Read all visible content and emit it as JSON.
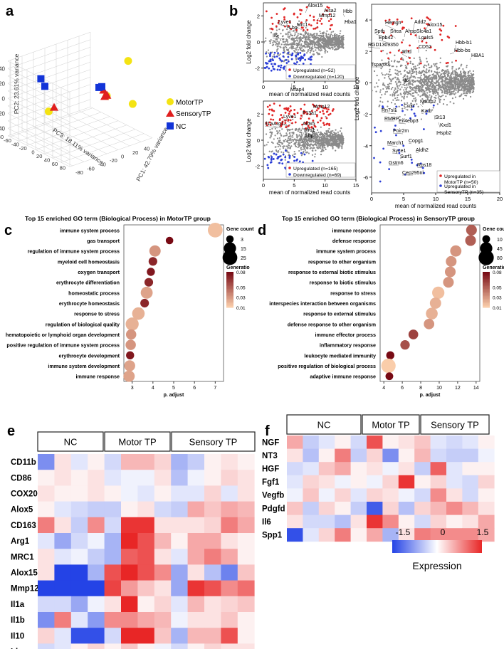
{
  "panel_letters": [
    "a",
    "b",
    "c",
    "d",
    "e",
    "f"
  ],
  "chart_data": [
    {
      "id": "a",
      "type": "scatter",
      "title": "",
      "xlabel": "PC1: 42.79% variance",
      "ylabel": "PC2: 23.61% variance",
      "zlabel": "PC3: 18.11% variance",
      "y_ticks": [
        "-40",
        "-20",
        "0",
        "20",
        "40"
      ],
      "x_ticks": [
        "-80",
        "-60",
        "-40",
        "-20",
        "0",
        "20",
        "40"
      ],
      "z_ticks": [
        "80",
        "60",
        "40",
        "20",
        "0",
        "-20",
        "-40",
        "-60",
        "-80"
      ],
      "legend": [
        {
          "name": "MotorTP",
          "color": "#f4e313"
        },
        {
          "name": "SensoryTP",
          "color": "#e01f1f"
        },
        {
          "name": "NC",
          "color": "#1234d8"
        }
      ],
      "series": [
        {
          "name": "MotorTP",
          "points": [
            [
              55,
              -40,
              10
            ],
            [
              10,
              -8,
              20
            ],
            [
              -62,
              5,
              -20
            ],
            [
              48,
              10,
              30
            ]
          ]
        },
        {
          "name": "SensoryTP",
          "points": [
            [
              -60,
              -3,
              -10
            ],
            [
              10,
              -6,
              15
            ],
            [
              8,
              -15,
              15
            ],
            [
              18,
              -4,
              10
            ]
          ]
        },
        {
          "name": "NC",
          "points": [
            [
              -72,
              -40,
              -25
            ],
            [
              -65,
              -28,
              -25
            ],
            [
              -10,
              -30,
              35
            ],
            [
              -30,
              -40,
              55
            ]
          ]
        }
      ]
    },
    {
      "id": "b1",
      "type": "scatter",
      "xlabel": "mean of normalized read counts",
      "ylabel": "Log2 fold change",
      "xlim": [
        0,
        15
      ],
      "ylim": [
        -3,
        3
      ],
      "x_ticks": [
        "0",
        "5",
        "10",
        "15"
      ],
      "y_ticks": [
        "-2",
        "0",
        "2"
      ],
      "gene_labels": [
        "Alox15",
        "Aisa2",
        "Mmp12",
        "Hbb",
        "Hba1",
        "Lyve1",
        "Lbp",
        "Mrc1",
        "Il6",
        "Mfap4"
      ],
      "legend": [
        "Upregulated (n=52)",
        "Downregulated (n=120)"
      ]
    },
    {
      "id": "b2",
      "type": "scatter",
      "xlabel": "mean of normalized read counts",
      "ylabel": "Log2 fold change",
      "xlim": [
        0,
        15
      ],
      "ylim": [
        -3,
        3
      ],
      "x_ticks": [
        "0",
        "5",
        "10",
        "15"
      ],
      "y_ticks": [
        "-2",
        "0",
        "2"
      ],
      "gene_labels": [
        "Mmp12",
        "F13a1",
        "Lyve1",
        "Il1a",
        "Arg1",
        "Alox5",
        "Mrc1",
        "Lbp"
      ],
      "legend": [
        "Upregulated (n=165)",
        "Downregulated (n=69)"
      ]
    },
    {
      "id": "b3",
      "type": "scatter",
      "xlabel": "mean of normalized read counts",
      "ylabel": "Log2 fold change",
      "xlim": [
        0,
        20
      ],
      "ylim": [
        -7,
        5
      ],
      "x_ticks": [
        "0",
        "5",
        "10",
        "15",
        "20"
      ],
      "y_ticks": [
        "-6",
        "-4",
        "-2",
        "0",
        "2",
        "4"
      ],
      "gene_labels": [
        "Hemgn",
        "Add2",
        "Alox15",
        "Sptb",
        "Snca",
        "Ahsp",
        "Slc4a1",
        "Epb42",
        "Lgals5",
        "RGD1309350",
        "CD52",
        "Rhd",
        "Hbb-b1",
        "Hbb-bs",
        "HBA1",
        "Tspan33",
        "Il6",
        "Ndufb2",
        "Crcp",
        "Rn7sl1",
        "Katb",
        "St13",
        "RMRP",
        "Eif4ebp3",
        "Kxd1",
        "Poir2m",
        "Hspb2",
        "Copg1",
        "Aldh2",
        "March1",
        "Surf1",
        "Syce1",
        "Gstm6",
        "Rps18",
        "Cep295nl"
      ],
      "legend": [
        "Upregulated in MotorTP (n=50)",
        "Upregulated in SensoryTP (n=35)"
      ]
    },
    {
      "id": "c",
      "type": "scatter",
      "title": "Top 15 enriched GO term (Biological Process) in MotorTP group",
      "xlabel": "p. adjust",
      "x_ticks": [
        "3",
        "4",
        "5",
        "6",
        "7"
      ],
      "xlim": [
        2.6,
        7.4
      ],
      "size_legend_title": "Gene count",
      "size_legend": [
        "3",
        "15",
        "25"
      ],
      "color_legend_title": "Generatio",
      "color_legend": [
        "0.08",
        "0.05",
        "0.03",
        "0.01"
      ],
      "terms": [
        "immune system process",
        "gas transport",
        "regulation of immune system process",
        "myeloid cell homeostasis",
        "oxygen transport",
        "erythrocyte differentiation",
        "homeostatic process",
        "erythrocyte homeostasis",
        "response to stress",
        "regulation of biological quality",
        "hematopoietic or lymphoid organ development",
        "positive regulation of immune system process",
        "erythrocyte development",
        "immune system development",
        "immune response"
      ],
      "values": [
        7.0,
        4.8,
        4.1,
        4.0,
        3.9,
        3.8,
        3.7,
        3.6,
        3.3,
        3.0,
        2.95,
        2.93,
        2.9,
        2.88,
        2.85
      ],
      "gene_count": [
        25,
        3,
        12,
        5,
        4,
        5,
        14,
        5,
        16,
        18,
        9,
        9,
        4,
        11,
        12
      ],
      "gene_ratio": [
        0.015,
        0.08,
        0.03,
        0.07,
        0.075,
        0.07,
        0.025,
        0.07,
        0.02,
        0.02,
        0.03,
        0.03,
        0.075,
        0.025,
        0.025
      ]
    },
    {
      "id": "d",
      "type": "scatter",
      "title": "Top 15 enriched GO term (Biological Process) in SensoryTP group",
      "xlabel": "p. adjust",
      "x_ticks": [
        "4",
        "6",
        "8",
        "10",
        "12",
        "14"
      ],
      "xlim": [
        3.6,
        14.4
      ],
      "size_legend_title": "Gene count",
      "size_legend": [
        "10",
        "45",
        "80"
      ],
      "color_legend_title": "Generatio",
      "color_legend": [
        "0.08",
        "0.05",
        "0.03",
        "0.01"
      ],
      "terms": [
        "immune response",
        "defense response",
        "immune system process",
        "response to other organism",
        "response to external biotic stimulus",
        "response to biotic stimulus",
        "response to stress",
        "interspecies interaction between organisms",
        "response to external stimulus",
        "defense response to other organism",
        "immune effector process",
        "inflammatory response",
        "leukocyte mediated immunity",
        "positive regulation of biological process",
        "adaptive immune response"
      ],
      "values": [
        13.5,
        13.4,
        11.8,
        11.3,
        11.2,
        11.0,
        9.9,
        9.6,
        9.2,
        8.9,
        7.2,
        6.3,
        4.7,
        4.5,
        4.6
      ],
      "gene_count": [
        30,
        30,
        35,
        30,
        30,
        30,
        45,
        35,
        40,
        28,
        22,
        20,
        12,
        70,
        10
      ],
      "gene_ratio": [
        0.05,
        0.05,
        0.03,
        0.03,
        0.03,
        0.03,
        0.015,
        0.02,
        0.02,
        0.03,
        0.06,
        0.055,
        0.08,
        0.01,
        0.08
      ]
    },
    {
      "id": "e",
      "type": "heatmap",
      "groups": [
        "NC",
        "Motor TP",
        "Sensory TP"
      ],
      "rows": [
        "CD11b",
        "CD86",
        "COX20",
        "Alox5",
        "CD163",
        "Arg1",
        "MRC1",
        "Alox15",
        "Mmp12",
        "Il1a",
        "Il1b",
        "Il10",
        "Lbp"
      ],
      "values": [
        [
          -0.9,
          0.2,
          -0.2,
          0.1,
          -0.3,
          0.5,
          0.5,
          0.3,
          -0.6,
          -0.4,
          0.1,
          0.2,
          0.1
        ],
        [
          0.1,
          0.2,
          0.1,
          0.2,
          -0.2,
          -0.1,
          -0.1,
          0.2,
          -0.5,
          -0.1,
          0.1,
          0.3,
          0.2
        ],
        [
          0.2,
          0.1,
          0.1,
          0.2,
          0.1,
          -0.1,
          -0.2,
          0.1,
          -0.2,
          -0.2,
          0.3,
          -0.2,
          0.2
        ],
        [
          0.1,
          -0.2,
          -0.3,
          -0.4,
          -0.4,
          0.1,
          0.2,
          -0.3,
          -0.4,
          0.6,
          0.4,
          0.6,
          0.5
        ],
        [
          0.9,
          0.2,
          -0.4,
          0.8,
          -0.3,
          1.4,
          1.4,
          0.2,
          0.2,
          0.2,
          0.3,
          0.9,
          0.6
        ],
        [
          -0.2,
          -0.7,
          -0.3,
          -0.1,
          -0.6,
          1.5,
          1.2,
          0.5,
          0.1,
          0.6,
          0.6,
          0.2,
          0.1
        ],
        [
          0.2,
          -0.2,
          -0.1,
          -0.4,
          -0.6,
          1.1,
          1.2,
          0.2,
          -0.2,
          0.6,
          0.9,
          0.6,
          0.1
        ],
        [
          0.2,
          -1.5,
          -1.5,
          -0.6,
          1.2,
          1.5,
          1.2,
          0.8,
          -0.7,
          0.2,
          -0.5,
          -1.0,
          0.4
        ],
        [
          -1.5,
          -1.5,
          -1.5,
          -1.5,
          1.3,
          0.7,
          0.4,
          0.2,
          -0.7,
          1.4,
          1.2,
          0.8,
          1.0
        ],
        [
          -0.3,
          -0.3,
          -0.7,
          -0.1,
          0.2,
          1.5,
          0.1,
          0.3,
          -0.2,
          0.5,
          0.2,
          0.3,
          0.4
        ],
        [
          -0.9,
          0.9,
          -0.2,
          -0.8,
          0.8,
          0.8,
          0.6,
          0.5,
          -0.1,
          0.2,
          0.2,
          0.4,
          0.1
        ],
        [
          0.3,
          -0.2,
          -1.4,
          -1.4,
          -0.3,
          1.5,
          1.5,
          0.4,
          -0.6,
          0.5,
          0.5,
          1.2,
          0.1
        ],
        [
          -0.3,
          -0.2,
          0.1,
          0.3,
          0.1,
          0.4,
          0.1,
          -0.1,
          -0.3,
          0.1,
          0.3,
          0.2,
          0.2
        ]
      ]
    },
    {
      "id": "f",
      "type": "heatmap",
      "groups": [
        "NC",
        "Motor TP",
        "Sensory TP"
      ],
      "rows": [
        "NGF",
        "NT3",
        "HGF",
        "Fgf1",
        "Vegfb",
        "Pdgfd",
        "Il6",
        "Spp1"
      ],
      "values": [
        [
          0.6,
          -0.4,
          -0.2,
          0.1,
          -0.3,
          1.2,
          0.1,
          0.2,
          0.4,
          -0.2,
          -0.3,
          -0.2,
          0.1
        ],
        [
          0.2,
          -0.5,
          0.1,
          0.9,
          -0.4,
          0.3,
          -0.9,
          0.1,
          0.5,
          -0.3,
          -0.4,
          -0.4,
          -0.1
        ],
        [
          -0.3,
          -0.2,
          0.4,
          0.6,
          0.1,
          0.2,
          -0.1,
          0.2,
          -0.4,
          1.1,
          -0.2,
          0.1,
          0.1
        ],
        [
          -0.2,
          0.3,
          0.2,
          -0.1,
          0.1,
          -0.1,
          0.3,
          1.4,
          0.1,
          0.3,
          -0.2,
          -0.3,
          0.3
        ],
        [
          -0.1,
          0.4,
          -0.1,
          0.3,
          -0.2,
          0.3,
          0.2,
          -0.1,
          -0.3,
          0.8,
          0.2,
          -0.3,
          0.1
        ],
        [
          0.4,
          -0.4,
          0.3,
          0.1,
          -0.4,
          -1.3,
          0.3,
          -0.5,
          0.3,
          0.5,
          0.8,
          0.5,
          0.2
        ],
        [
          0.2,
          -0.3,
          -0.3,
          -0.5,
          0.2,
          1.4,
          0.8,
          0.1,
          -0.3,
          0.3,
          0.1,
          0.2,
          0.6
        ],
        [
          -1.4,
          -0.2,
          0.3,
          0.9,
          0.1,
          0.6,
          -0.6,
          0.2,
          0.9,
          0.8,
          0.8,
          0.8,
          0.6
        ]
      ],
      "colorbar": {
        "ticks": [
          "-1.5",
          "0",
          "1.5"
        ],
        "label": "Expression",
        "range": [
          -1.5,
          1.5
        ]
      }
    }
  ]
}
